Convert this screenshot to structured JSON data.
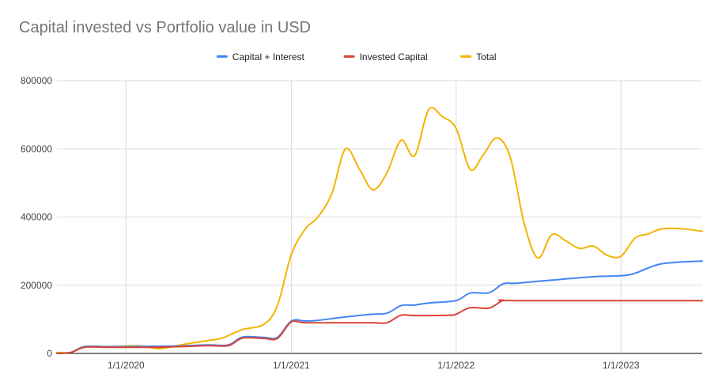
{
  "chart_data": {
    "type": "line",
    "title": "Capital invested vs Portfolio value in USD",
    "xlabel": "",
    "ylabel": "",
    "ylim": [
      0,
      800000
    ],
    "xlim": [
      "2019-08-01",
      "2023-06-30"
    ],
    "yticks": [
      0,
      200000,
      400000,
      600000,
      800000
    ],
    "ytick_labels": [
      "0",
      "200000",
      "400000",
      "600000",
      "800000"
    ],
    "xticks": [
      "2020-01-01",
      "2021-01-01",
      "2022-01-01",
      "2023-01-01"
    ],
    "xtick_labels": [
      "1/1/2020",
      "1/1/2021",
      "1/1/2022",
      "1/1/2023"
    ],
    "grid": true,
    "legend_position": "top",
    "series": [
      {
        "name": "Capital + Interest",
        "color": "#4285F4",
        "points": [
          [
            "2019-08-01",
            0
          ],
          [
            "2019-09-01",
            3000
          ],
          [
            "2019-10-01",
            20000
          ],
          [
            "2019-11-15",
            20000
          ],
          [
            "2020-01-01",
            20000
          ],
          [
            "2020-03-01",
            21000
          ],
          [
            "2020-05-01",
            22000
          ],
          [
            "2020-07-01",
            25000
          ],
          [
            "2020-08-15",
            25000
          ],
          [
            "2020-09-15",
            48000
          ],
          [
            "2020-11-01",
            47000
          ],
          [
            "2020-12-01",
            47000
          ],
          [
            "2021-01-01",
            95000
          ],
          [
            "2021-02-01",
            95000
          ],
          [
            "2021-03-01",
            97000
          ],
          [
            "2021-05-01",
            107000
          ],
          [
            "2021-07-01",
            115000
          ],
          [
            "2021-08-01",
            118000
          ],
          [
            "2021-09-01",
            140000
          ],
          [
            "2021-10-01",
            142000
          ],
          [
            "2021-11-01",
            148000
          ],
          [
            "2022-01-01",
            155000
          ],
          [
            "2022-02-01",
            177000
          ],
          [
            "2022-03-15",
            178000
          ],
          [
            "2022-04-15",
            204000
          ],
          [
            "2022-05-15",
            206000
          ],
          [
            "2022-08-01",
            215000
          ],
          [
            "2022-11-01",
            225000
          ],
          [
            "2023-01-01",
            228000
          ],
          [
            "2023-02-01",
            235000
          ],
          [
            "2023-04-01",
            263000
          ],
          [
            "2023-06-30",
            271000
          ]
        ]
      },
      {
        "name": "Invested Capital",
        "color": "#DB4437",
        "points": [
          [
            "2019-08-01",
            0
          ],
          [
            "2019-09-01",
            3000
          ],
          [
            "2019-10-01",
            18000
          ],
          [
            "2019-11-15",
            18000
          ],
          [
            "2020-01-01",
            18000
          ],
          [
            "2020-03-01",
            18000
          ],
          [
            "2020-05-01",
            20000
          ],
          [
            "2020-07-01",
            23000
          ],
          [
            "2020-08-15",
            23000
          ],
          [
            "2020-09-15",
            45000
          ],
          [
            "2020-11-01",
            44000
          ],
          [
            "2020-12-01",
            44000
          ],
          [
            "2021-01-01",
            92000
          ],
          [
            "2021-02-01",
            90000
          ],
          [
            "2021-05-01",
            90000
          ],
          [
            "2021-07-01",
            90000
          ],
          [
            "2021-08-01",
            90000
          ],
          [
            "2021-09-01",
            112000
          ],
          [
            "2021-10-01",
            111000
          ],
          [
            "2021-12-15",
            112000
          ],
          [
            "2022-01-01",
            115000
          ],
          [
            "2022-02-01",
            134000
          ],
          [
            "2022-03-15",
            133000
          ],
          [
            "2022-04-15",
            155000
          ],
          [
            "2022-05-15",
            155000
          ],
          [
            "2023-06-30",
            155000
          ]
        ]
      },
      {
        "name": "Total",
        "color": "#F4B400",
        "points": [
          [
            "2019-08-01",
            3000
          ],
          [
            "2019-09-01",
            3000
          ],
          [
            "2019-10-01",
            20000
          ],
          [
            "2019-12-01",
            20000
          ],
          [
            "2020-02-01",
            22000
          ],
          [
            "2020-03-15",
            14000
          ],
          [
            "2020-05-01",
            25000
          ],
          [
            "2020-07-01",
            38000
          ],
          [
            "2020-08-01",
            45000
          ],
          [
            "2020-09-15",
            70000
          ],
          [
            "2020-11-01",
            85000
          ],
          [
            "2020-12-01",
            140000
          ],
          [
            "2021-01-01",
            290000
          ],
          [
            "2021-02-01",
            365000
          ],
          [
            "2021-03-01",
            400000
          ],
          [
            "2021-04-01",
            470000
          ],
          [
            "2021-05-01",
            600000
          ],
          [
            "2021-06-01",
            540000
          ],
          [
            "2021-07-01",
            480000
          ],
          [
            "2021-08-01",
            530000
          ],
          [
            "2021-09-01",
            625000
          ],
          [
            "2021-10-01",
            580000
          ],
          [
            "2021-11-01",
            715000
          ],
          [
            "2021-12-01",
            695000
          ],
          [
            "2022-01-01",
            660000
          ],
          [
            "2022-02-01",
            540000
          ],
          [
            "2022-03-01",
            580000
          ],
          [
            "2022-04-01",
            632000
          ],
          [
            "2022-05-01",
            575000
          ],
          [
            "2022-06-01",
            380000
          ],
          [
            "2022-07-01",
            280000
          ],
          [
            "2022-08-01",
            348000
          ],
          [
            "2022-09-01",
            330000
          ],
          [
            "2022-10-01",
            308000
          ],
          [
            "2022-11-01",
            315000
          ],
          [
            "2022-12-01",
            288000
          ],
          [
            "2023-01-01",
            285000
          ],
          [
            "2023-02-01",
            338000
          ],
          [
            "2023-03-01",
            350000
          ],
          [
            "2023-04-01",
            365000
          ],
          [
            "2023-05-15",
            366000
          ],
          [
            "2023-06-30",
            358000
          ]
        ]
      }
    ]
  }
}
